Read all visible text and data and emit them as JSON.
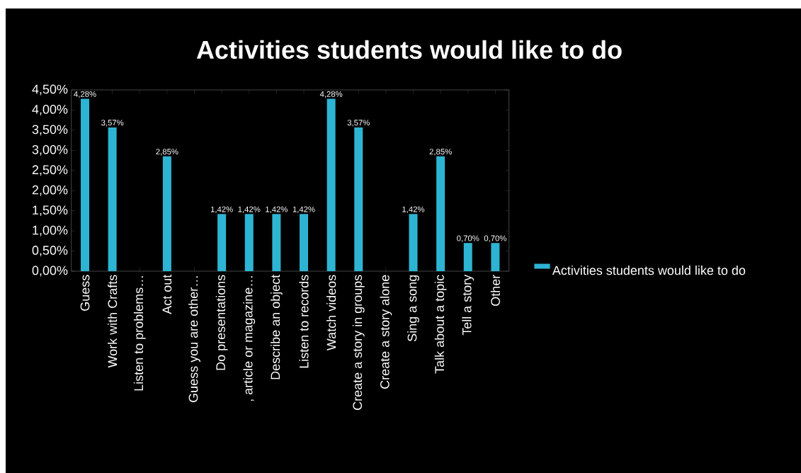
{
  "chart_data": {
    "type": "bar",
    "title": "Activities students would like to do",
    "categories": [
      "Guess",
      "Work with Crafts",
      "Listen to problems…",
      "Act out",
      "Guess you are other…",
      "Do presentations",
      ", article or magazine…",
      "Describe an object",
      "Listen to records",
      "Watch videos",
      "Create a story in groups",
      "Create a story alone",
      "Sing a song",
      "Talk about a topic",
      "Tell a story",
      "Other"
    ],
    "series": [
      {
        "name": "Activities students would like to do",
        "color": "#2eb4d3",
        "values": [
          4.28,
          3.57,
          null,
          2.85,
          null,
          1.42,
          1.42,
          1.42,
          1.42,
          4.28,
          3.57,
          null,
          1.42,
          2.85,
          0.7,
          0.7
        ],
        "value_labels": [
          "4,28%",
          "3,57%",
          null,
          "2,85%",
          null,
          "1,42%",
          "1,42%",
          "1,42%",
          "1,42%",
          "4,28%",
          "3,57%",
          null,
          "1,42%",
          "2,85%",
          "0,70%",
          "0,70%"
        ]
      }
    ],
    "ylim": [
      0,
      4.5
    ],
    "yticks": [
      {
        "value": 0,
        "label": "0,00%"
      },
      {
        "value": 0.5,
        "label": "0,50%"
      },
      {
        "value": 1,
        "label": "1,00%"
      },
      {
        "value": 1.5,
        "label": "1,50%"
      },
      {
        "value": 2,
        "label": "2,00%"
      },
      {
        "value": 2.5,
        "label": "2,50%"
      },
      {
        "value": 3,
        "label": "3,00%"
      },
      {
        "value": 3.5,
        "label": "3,50%"
      },
      {
        "value": 4,
        "label": "4,00%"
      },
      {
        "value": 4.5,
        "label": "4,50%"
      }
    ],
    "legend": "right"
  }
}
